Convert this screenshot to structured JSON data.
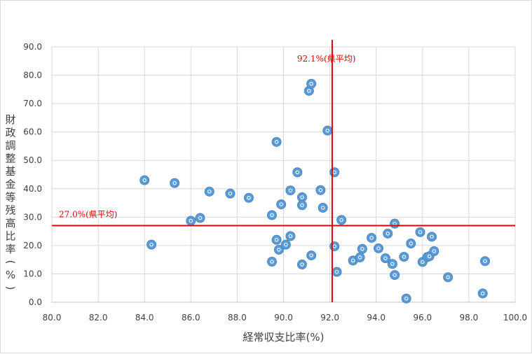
{
  "chart_data": {
    "type": "scatter",
    "xlabel": "経常収支比率(%)",
    "ylabel": "財政調整基金等残高比率(%)",
    "xlim": [
      80,
      100
    ],
    "ylim": [
      0,
      90
    ],
    "x_ticks": [
      "80.0",
      "82.0",
      "84.0",
      "86.0",
      "88.0",
      "90.0",
      "92.0",
      "94.0",
      "96.0",
      "98.0",
      "100.0"
    ],
    "y_ticks": [
      "0.0",
      "10.0",
      "20.0",
      "30.0",
      "40.0",
      "50.0",
      "60.0",
      "70.0",
      "80.0",
      "90.0"
    ],
    "grid": true,
    "marker_color": "#5b9bd5",
    "reference_lines": {
      "vertical": {
        "x": 92.1,
        "label": "92.1%(県平均)",
        "color": "#e00000"
      },
      "horizontal": {
        "y": 27.0,
        "label": "27.0%(県平均)",
        "color": "#e00000"
      }
    },
    "points": [
      [
        84.0,
        43.0
      ],
      [
        84.3,
        20.3
      ],
      [
        85.3,
        42.0
      ],
      [
        86.0,
        28.7
      ],
      [
        86.4,
        29.7
      ],
      [
        86.8,
        39.0
      ],
      [
        87.7,
        38.3
      ],
      [
        88.5,
        36.8
      ],
      [
        89.5,
        30.7
      ],
      [
        89.5,
        14.3
      ],
      [
        89.7,
        56.5
      ],
      [
        89.7,
        22.0
      ],
      [
        89.8,
        18.5
      ],
      [
        89.9,
        34.5
      ],
      [
        90.1,
        20.3
      ],
      [
        90.3,
        39.4
      ],
      [
        90.3,
        23.3
      ],
      [
        90.6,
        45.8
      ],
      [
        90.8,
        37.0
      ],
      [
        90.8,
        34.2
      ],
      [
        90.8,
        13.3
      ],
      [
        91.1,
        74.5
      ],
      [
        91.2,
        77.0
      ],
      [
        91.2,
        16.5
      ],
      [
        91.6,
        39.5
      ],
      [
        91.7,
        33.3
      ],
      [
        91.9,
        60.5
      ],
      [
        92.2,
        45.8
      ],
      [
        92.2,
        19.7
      ],
      [
        92.3,
        10.7
      ],
      [
        92.5,
        29.0
      ],
      [
        93.0,
        14.7
      ],
      [
        93.3,
        15.8
      ],
      [
        93.4,
        18.8
      ],
      [
        93.8,
        22.7
      ],
      [
        94.1,
        19.0
      ],
      [
        94.4,
        15.5
      ],
      [
        94.5,
        24.2
      ],
      [
        94.7,
        13.5
      ],
      [
        94.8,
        27.7
      ],
      [
        94.8,
        9.6
      ],
      [
        95.2,
        16.0
      ],
      [
        95.3,
        1.3
      ],
      [
        95.5,
        20.7
      ],
      [
        95.9,
        24.7
      ],
      [
        96.0,
        14.2
      ],
      [
        96.2,
        15.9
      ],
      [
        96.3,
        16.2
      ],
      [
        96.4,
        23.1
      ],
      [
        96.5,
        18.0
      ],
      [
        97.1,
        8.8
      ],
      [
        98.6,
        3.1
      ],
      [
        98.7,
        14.5
      ]
    ]
  }
}
